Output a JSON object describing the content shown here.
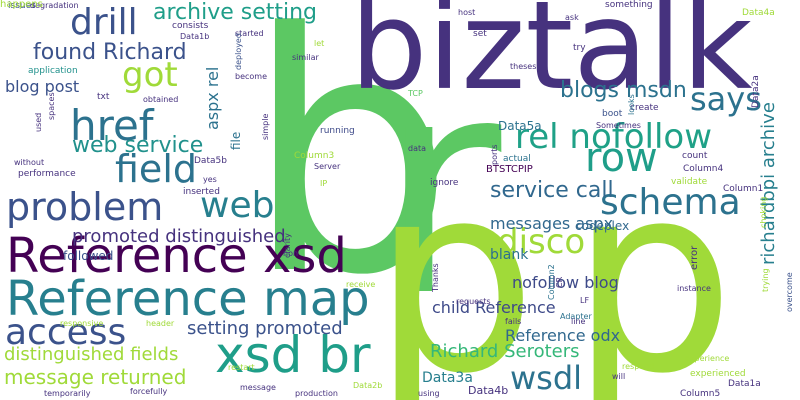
{
  "palette": [
    "#440154",
    "#46327e",
    "#365c8d",
    "#277f8e",
    "#1fa187",
    "#4ac16d",
    "#a0da39",
    "#fde725"
  ],
  "words": [
    {
      "text": "b",
      "color": "#5cc863"
    },
    {
      "text": "r",
      "color": "#5cc863"
    },
    {
      "text": "p",
      "color": "#a0da39"
    },
    {
      "text": "p",
      "color": "#a0da39"
    },
    {
      "text": "biztalk",
      "color": "#46327e"
    },
    {
      "text": "Reference xsd",
      "color": "#440154"
    },
    {
      "text": "Reference map",
      "color": "#277f8e"
    },
    {
      "text": "xsd br",
      "color": "#1f9e89"
    },
    {
      "text": "problem",
      "color": "#3b528b"
    },
    {
      "text": "schema",
      "color": "#2c728e"
    },
    {
      "text": "row",
      "color": "#1f9e89"
    },
    {
      "text": "rel nofollow",
      "color": "#1fa187"
    },
    {
      "text": "field",
      "color": "#2c728e"
    },
    {
      "text": "href",
      "color": "#2c728e"
    },
    {
      "text": "drill",
      "color": "#3b528b"
    },
    {
      "text": "got",
      "color": "#a0da39"
    },
    {
      "text": "web",
      "color": "#277f8e"
    },
    {
      "text": "access",
      "color": "#3b528b"
    },
    {
      "text": "disco",
      "color": "#a0da39"
    },
    {
      "text": "wsdl",
      "color": "#2c728e"
    },
    {
      "text": "says",
      "color": "#2c728e"
    },
    {
      "text": "archive setting",
      "color": "#1f9e89"
    },
    {
      "text": "found Richard",
      "color": "#3b528b"
    },
    {
      "text": "blogs msdn",
      "color": "#2c728e"
    },
    {
      "text": "web service",
      "color": "#21918c"
    },
    {
      "text": "service call",
      "color": "#31688e"
    },
    {
      "text": "promoted distinguished",
      "color": "#46327e"
    },
    {
      "text": "setting promoted",
      "color": "#3b528b"
    },
    {
      "text": "Richard Seroters",
      "color": "#35b779"
    },
    {
      "text": "message returned",
      "color": "#a0da39"
    },
    {
      "text": "distinguished fields",
      "color": "#a0da39"
    },
    {
      "text": "richardbpi archive",
      "color": "#277f8e"
    },
    {
      "text": "messages aspx",
      "color": "#31688e"
    },
    {
      "text": "nofollow blog",
      "color": "#3e4a89"
    },
    {
      "text": "child Reference",
      "color": "#3e4a89"
    },
    {
      "text": "Reference odx",
      "color": "#31688e"
    },
    {
      "text": "blog post",
      "color": "#3b528b"
    },
    {
      "text": "aspx rel",
      "color": "#2c728e"
    },
    {
      "text": "Data3a",
      "color": "#277f8e"
    },
    {
      "text": "Data4b",
      "color": "#46327e"
    },
    {
      "text": "Data5a",
      "color": "#2c728e"
    },
    {
      "text": "BTSTCPIP",
      "color": "#440154"
    },
    {
      "text": "codeplex",
      "color": "#31688e"
    },
    {
      "text": "blank",
      "color": "#2c728e"
    },
    {
      "text": "followed",
      "color": "#3b528b"
    },
    {
      "text": "ignore",
      "color": "#46327e"
    },
    {
      "text": "file",
      "color": "#2c728e"
    },
    {
      "text": "running",
      "color": "#3e4a89"
    },
    {
      "text": "issues",
      "color": "#3b528b"
    },
    {
      "text": "degradation",
      "color": "#46327e"
    },
    {
      "text": "consists",
      "color": "#46327e"
    },
    {
      "text": "Data1b",
      "color": "#46327e"
    },
    {
      "text": "host",
      "color": "#46327e"
    },
    {
      "text": "something",
      "color": "#46327e"
    },
    {
      "text": "ask",
      "color": "#46327e"
    },
    {
      "text": "Data4a",
      "color": "#a0da39"
    },
    {
      "text": "set",
      "color": "#46327e"
    },
    {
      "text": "try",
      "color": "#46327e"
    },
    {
      "text": "theses",
      "color": "#46327e"
    },
    {
      "text": "Data2a",
      "color": "#46327e"
    },
    {
      "text": "application",
      "color": "#21918c"
    },
    {
      "text": "txt",
      "color": "#46327e"
    },
    {
      "text": "obtained",
      "color": "#46327e"
    },
    {
      "text": "become",
      "color": "#46327e"
    },
    {
      "text": "similar",
      "color": "#46327e"
    },
    {
      "text": "started",
      "color": "#46327e"
    },
    {
      "text": "let",
      "color": "#a0da39"
    },
    {
      "text": "deployed",
      "color": "#3b528b"
    },
    {
      "text": "TCP",
      "color": "#5cc863"
    },
    {
      "text": "boot",
      "color": "#3b528b"
    },
    {
      "text": "create",
      "color": "#46327e"
    },
    {
      "text": "Sometimes",
      "color": "#46327e"
    },
    {
      "text": "looks",
      "color": "#2c728e"
    },
    {
      "text": "count",
      "color": "#46327e"
    },
    {
      "text": "Column4",
      "color": "#46327e"
    },
    {
      "text": "Column1",
      "color": "#46327e"
    },
    {
      "text": "validate",
      "color": "#a0da39"
    },
    {
      "text": "Column3",
      "color": "#a0da39"
    },
    {
      "text": "Server",
      "color": "#46327e"
    },
    {
      "text": "IP",
      "color": "#a0da39"
    },
    {
      "text": "data",
      "color": "#46327e"
    },
    {
      "text": "actual",
      "color": "#2c728e"
    },
    {
      "text": "ports",
      "color": "#46327e"
    },
    {
      "text": "without",
      "color": "#46327e"
    },
    {
      "text": "performance",
      "color": "#46327e"
    },
    {
      "text": "Data5b",
      "color": "#46327e"
    },
    {
      "text": "yes",
      "color": "#46327e"
    },
    {
      "text": "inserted",
      "color": "#46327e"
    },
    {
      "text": "simple",
      "color": "#46327e"
    },
    {
      "text": "used",
      "color": "#46327e"
    },
    {
      "text": "spaces",
      "color": "#46327e"
    },
    {
      "text": "non",
      "color": "#46327e"
    },
    {
      "text": "clarity",
      "color": "#46327e"
    },
    {
      "text": "receive",
      "color": "#a0da39"
    },
    {
      "text": "responsive",
      "color": "#a0da39"
    },
    {
      "text": "header",
      "color": "#a0da39"
    },
    {
      "text": "restart",
      "color": "#a0da39"
    },
    {
      "text": "temporarily",
      "color": "#46327e"
    },
    {
      "text": "forcefully",
      "color": "#46327e"
    },
    {
      "text": "message",
      "color": "#46327e"
    },
    {
      "text": "production",
      "color": "#46327e"
    },
    {
      "text": "Data2b",
      "color": "#a0da39"
    },
    {
      "text": "using",
      "color": "#46327e"
    },
    {
      "text": "Thanks",
      "color": "#46327e"
    },
    {
      "text": "requests",
      "color": "#46327e"
    },
    {
      "text": "Column2",
      "color": "#2c728e"
    },
    {
      "text": "CR",
      "color": "#46327e"
    },
    {
      "text": "LF",
      "color": "#46327e"
    },
    {
      "text": "Adapter",
      "color": "#2c728e"
    },
    {
      "text": "instance",
      "color": "#46327e"
    },
    {
      "text": "error",
      "color": "#46327e"
    },
    {
      "text": "line",
      "color": "#46327e"
    },
    {
      "text": "fails",
      "color": "#46327e"
    },
    {
      "text": "will",
      "color": "#46327e"
    },
    {
      "text": "respond",
      "color": "#a0da39"
    },
    {
      "text": "experienced",
      "color": "#a0da39"
    },
    {
      "text": "Column5",
      "color": "#46327e"
    },
    {
      "text": "Data1a",
      "color": "#46327e"
    },
    {
      "text": "experience",
      "color": "#a0da39"
    },
    {
      "text": "choking",
      "color": "#a0da39"
    },
    {
      "text": "trying",
      "color": "#a0da39"
    },
    {
      "text": "overcome",
      "color": "#3b528b"
    },
    {
      "text": "happens",
      "color": "#a0da39"
    }
  ]
}
